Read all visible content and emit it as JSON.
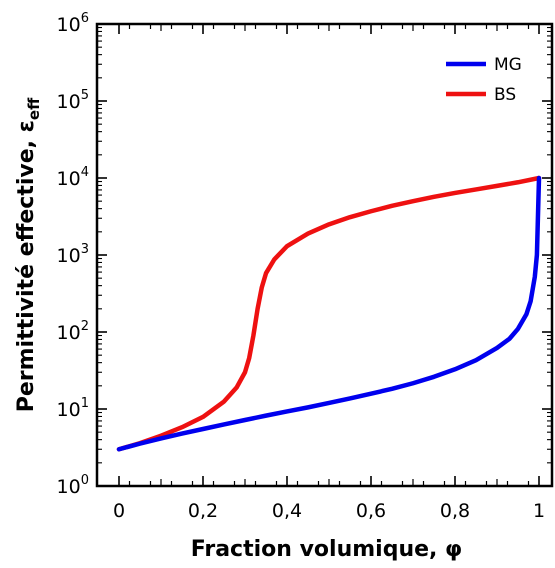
{
  "chart_data": {
    "type": "line",
    "xlabel": "Fraction volumique, φ",
    "ylabel_main": "Permittivité effective, ε",
    "ylabel_sub": "eff",
    "xlim": [
      0,
      1
    ],
    "ylim": [
      1,
      1000000
    ],
    "y_scale": "log",
    "grid": false,
    "legend_position": "top-right",
    "x_ticks": [
      {
        "value": 0,
        "label": "0"
      },
      {
        "value": 0.2,
        "label": "0,2"
      },
      {
        "value": 0.4,
        "label": "0,4"
      },
      {
        "value": 0.6,
        "label": "0,6"
      },
      {
        "value": 0.8,
        "label": "0,8"
      },
      {
        "value": 1,
        "label": "1"
      }
    ],
    "y_ticks": [
      {
        "value": 1,
        "base": "10",
        "exp": "0"
      },
      {
        "value": 10,
        "base": "10",
        "exp": "1"
      },
      {
        "value": 100,
        "base": "10",
        "exp": "2"
      },
      {
        "value": 1000,
        "base": "10",
        "exp": "3"
      },
      {
        "value": 10000,
        "base": "10",
        "exp": "4"
      },
      {
        "value": 100000,
        "base": "10",
        "exp": "5"
      },
      {
        "value": 1000000,
        "base": "10",
        "exp": "6"
      }
    ],
    "series": [
      {
        "name": "MG",
        "color": "#0000ee",
        "x": [
          0,
          0.05,
          0.1,
          0.15,
          0.2,
          0.25,
          0.3,
          0.35,
          0.4,
          0.45,
          0.5,
          0.55,
          0.6,
          0.65,
          0.7,
          0.75,
          0.8,
          0.85,
          0.9,
          0.93,
          0.95,
          0.97,
          0.98,
          0.99,
          0.995,
          1.0
        ],
        "y": [
          3.0,
          3.55,
          4.15,
          4.8,
          5.5,
          6.3,
          7.2,
          8.2,
          9.3,
          10.5,
          12.0,
          13.7,
          15.8,
          18.3,
          21.6,
          26.2,
          32.8,
          43.0,
          62.0,
          82.0,
          110.0,
          170.0,
          250.0,
          520.0,
          1000.0,
          10000.0
        ]
      },
      {
        "name": "BS",
        "color": "#ee1111",
        "x": [
          0,
          0.05,
          0.1,
          0.15,
          0.2,
          0.25,
          0.28,
          0.3,
          0.31,
          0.32,
          0.33,
          0.34,
          0.35,
          0.37,
          0.4,
          0.45,
          0.5,
          0.55,
          0.6,
          0.65,
          0.7,
          0.75,
          0.8,
          0.85,
          0.9,
          0.95,
          1.0
        ],
        "y": [
          3.0,
          3.6,
          4.5,
          5.8,
          7.9,
          12.5,
          19.0,
          30.0,
          46.0,
          90.0,
          200.0,
          380.0,
          580.0,
          880.0,
          1300.0,
          1900.0,
          2500.0,
          3100.0,
          3700.0,
          4350.0,
          5000.0,
          5700.0,
          6400.0,
          7100.0,
          7900.0,
          8800.0,
          10000.0
        ]
      }
    ]
  }
}
